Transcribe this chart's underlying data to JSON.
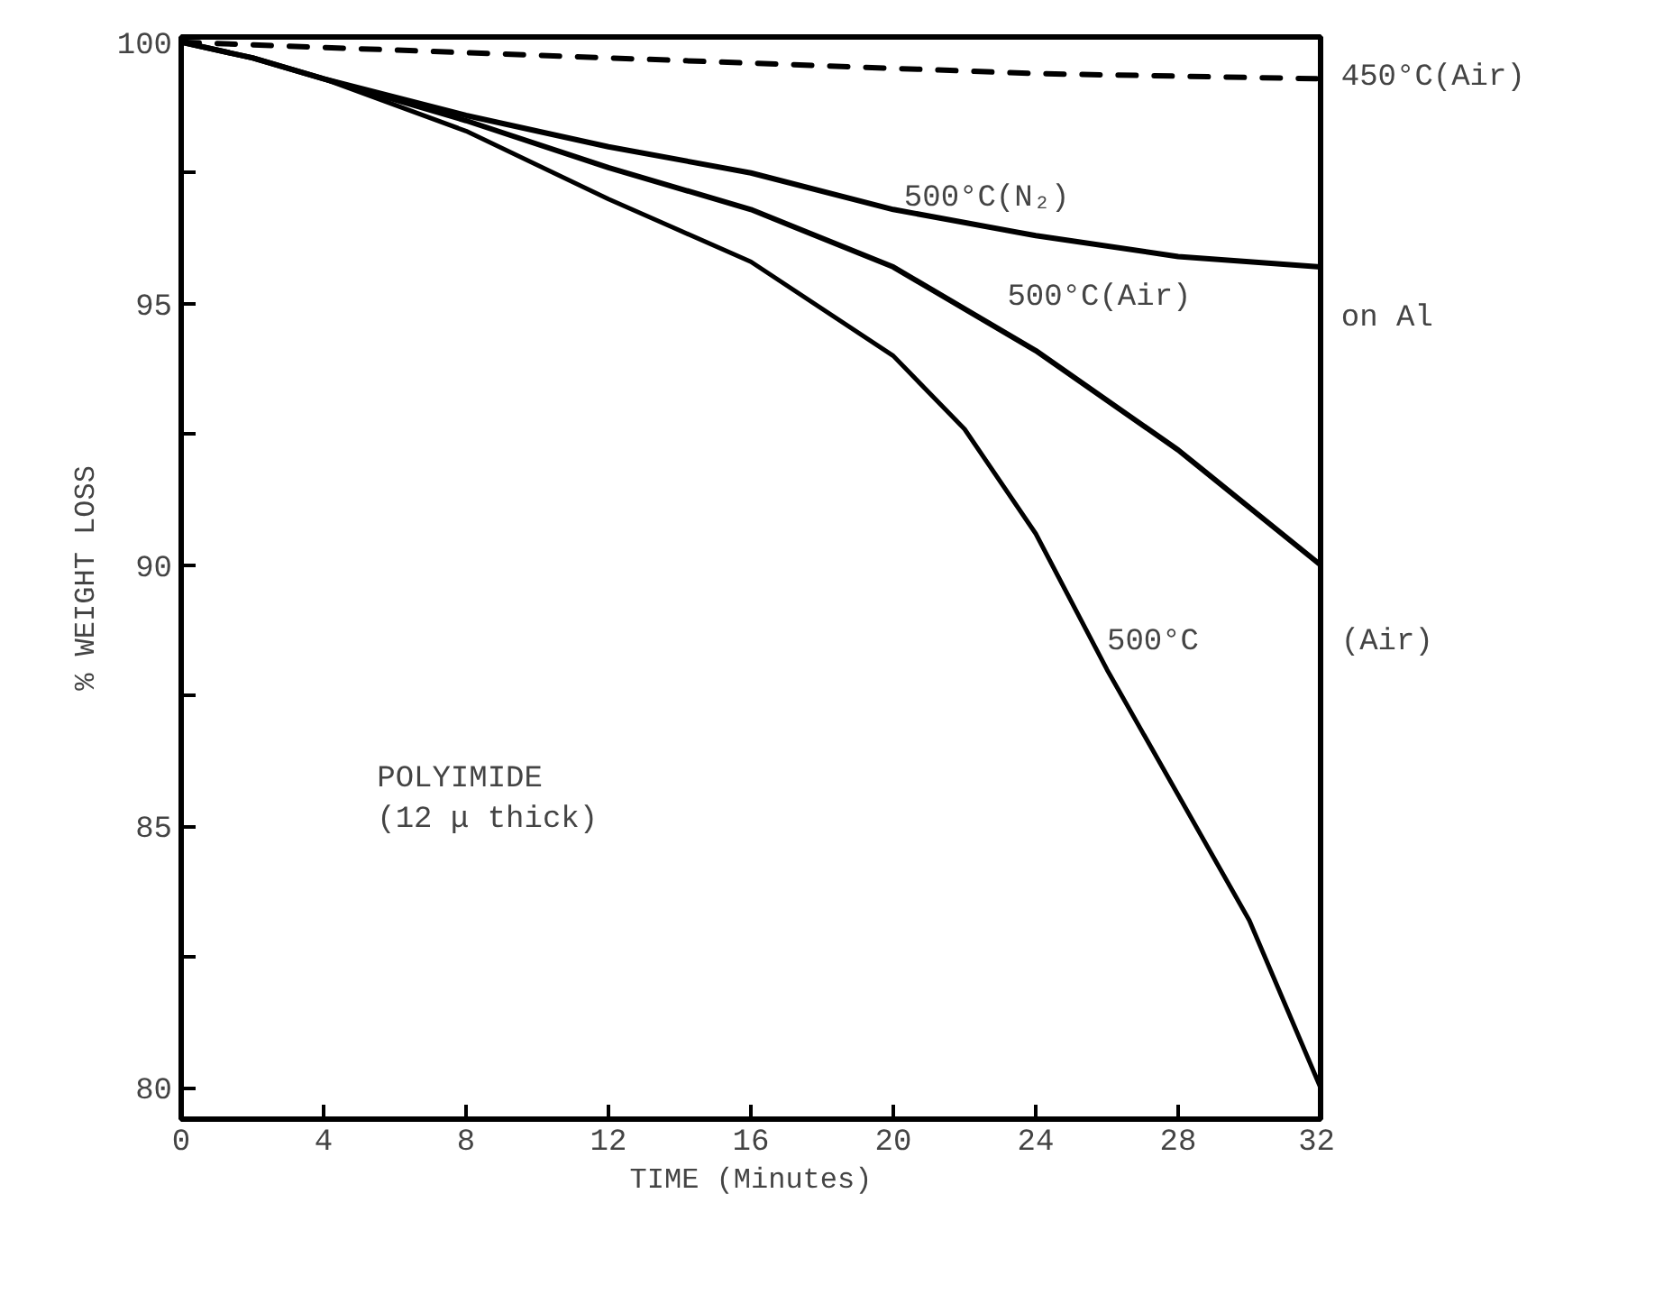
{
  "chart_data": {
    "type": "line",
    "xlabel": "TIME (Minutes)",
    "ylabel": "% WEIGHT LOSS",
    "xlim": [
      0,
      32
    ],
    "ylim": [
      79.4,
      100.1
    ],
    "xticks": [
      0,
      4,
      8,
      12,
      16,
      20,
      24,
      28,
      32
    ],
    "yticks": [
      80,
      {
        "value": 82.5,
        "label": null
      },
      85,
      {
        "value": 87.5,
        "label": null
      },
      90,
      {
        "value": 92.5,
        "label": null
      },
      95,
      {
        "value": 97.5,
        "label": null
      },
      100
    ],
    "grid": false,
    "marker": "none",
    "series": [
      {
        "color": "#000000",
        "line_style": "dashed",
        "x": [
          0,
          4,
          8,
          12,
          16,
          20,
          24,
          28,
          32
        ],
        "values": [
          100,
          99.9,
          99.8,
          99.7,
          99.6,
          99.5,
          99.4,
          99.35,
          99.3
        ]
      },
      {
        "color": "#000000",
        "line_style": "solid",
        "x": [
          0,
          2,
          4,
          8,
          12,
          16,
          20,
          24,
          28,
          32
        ],
        "values": [
          100,
          99.7,
          99.3,
          98.6,
          98.0,
          97.5,
          96.8,
          96.3,
          95.9,
          95.7
        ]
      },
      {
        "color": "#000000",
        "line_style": "solid",
        "x": [
          0,
          2,
          4,
          8,
          12,
          16,
          20,
          24,
          28,
          32
        ],
        "values": [
          100,
          99.7,
          99.3,
          98.5,
          97.6,
          96.8,
          95.7,
          94.1,
          92.2,
          90.0
        ]
      },
      {
        "color": "#000000",
        "line_style": "solid",
        "x": [
          0,
          2,
          4,
          8,
          12,
          16,
          20,
          22,
          24,
          26,
          28,
          30,
          32
        ],
        "values": [
          100,
          99.7,
          99.3,
          98.3,
          97.0,
          95.8,
          94.0,
          92.6,
          90.6,
          88.0,
          85.6,
          83.2,
          80.0
        ]
      }
    ],
    "annotations": [
      "450°C(Air)",
      "500°C(N₂)",
      "500°C(Air)",
      "on Al",
      "500°C",
      "(Air)",
      "POLYIMIDE\n(12 μ thick)"
    ]
  }
}
